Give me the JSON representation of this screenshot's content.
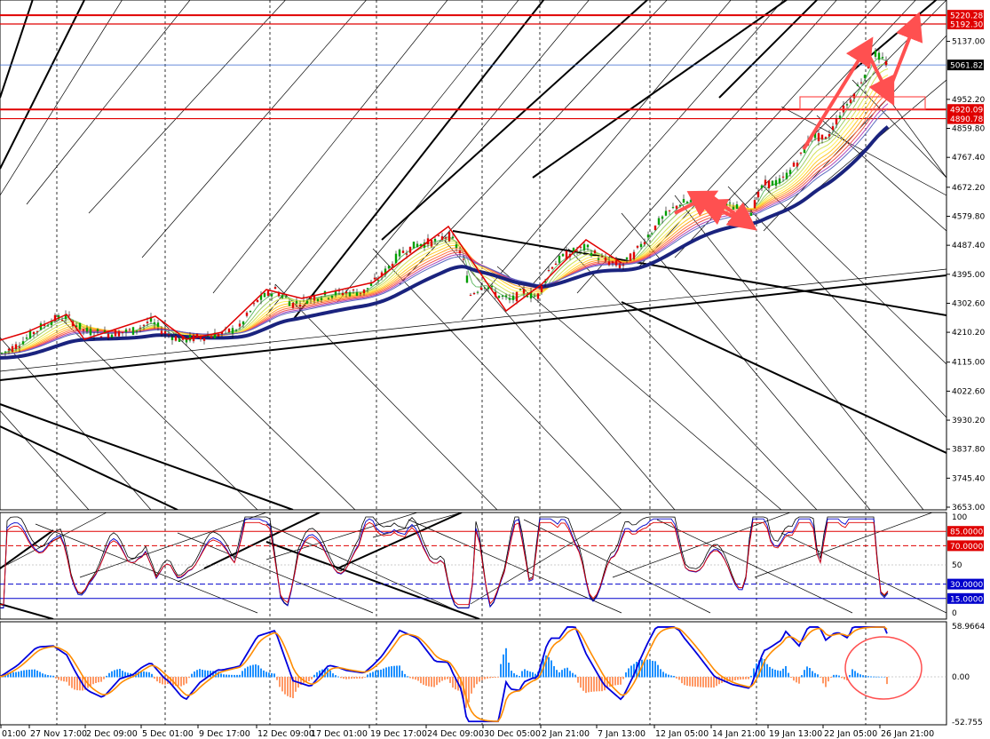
{
  "chart_data": [
    {
      "type": "candlestick",
      "panel": "main",
      "y_axis_ticks": [
        "5137.00",
        "5044.60",
        "4952.20",
        "4859.80",
        "4767.40",
        "4672.20",
        "4579.80",
        "4487.40",
        "4395.00",
        "4302.60",
        "4210.20",
        "4115.00",
        "4022.60",
        "3930.20",
        "3837.80",
        "3745.40",
        "3653.00"
      ],
      "ylim": [
        3653.0,
        5232.0
      ],
      "current_price": "5061.82",
      "horizontal_levels": [
        {
          "label": "5220.28",
          "value": 5220.28,
          "color": "#e00000"
        },
        {
          "label": "5192.30",
          "value": 5192.3,
          "color": "#e00000"
        },
        {
          "label": "4920.09",
          "value": 4920.09,
          "color": "#e00000"
        },
        {
          "label": "4890.78",
          "value": 4890.78,
          "color": "#e00000"
        }
      ],
      "price_path": [
        [
          0,
          4140
        ],
        [
          20,
          4170
        ],
        [
          45,
          4225
        ],
        [
          60,
          4250
        ],
        [
          75,
          4260
        ],
        [
          95,
          4215
        ],
        [
          120,
          4205
        ],
        [
          150,
          4215
        ],
        [
          170,
          4245
        ],
        [
          185,
          4210
        ],
        [
          205,
          4185
        ],
        [
          225,
          4195
        ],
        [
          250,
          4205
        ],
        [
          270,
          4225
        ],
        [
          290,
          4310
        ],
        [
          310,
          4345
        ],
        [
          330,
          4300
        ],
        [
          350,
          4320
        ],
        [
          380,
          4335
        ],
        [
          410,
          4340
        ],
        [
          430,
          4390
        ],
        [
          450,
          4460
        ],
        [
          470,
          4490
        ],
        [
          490,
          4500
        ],
        [
          505,
          4520
        ],
        [
          520,
          4460
        ],
        [
          530,
          4330
        ],
        [
          545,
          4365
        ],
        [
          560,
          4330
        ],
        [
          575,
          4310
        ],
        [
          590,
          4340
        ],
        [
          605,
          4320
        ],
        [
          620,
          4420
        ],
        [
          640,
          4460
        ],
        [
          660,
          4480
        ],
        [
          680,
          4440
        ],
        [
          700,
          4420
        ],
        [
          715,
          4460
        ],
        [
          730,
          4520
        ],
        [
          745,
          4570
        ],
        [
          765,
          4620
        ],
        [
          785,
          4630
        ],
        [
          805,
          4620
        ],
        [
          825,
          4610
        ],
        [
          845,
          4590
        ],
        [
          860,
          4680
        ],
        [
          880,
          4690
        ],
        [
          900,
          4760
        ],
        [
          915,
          4840
        ],
        [
          930,
          4820
        ],
        [
          945,
          4900
        ],
        [
          960,
          4960
        ],
        [
          975,
          5040
        ],
        [
          985,
          5100
        ],
        [
          995,
          5075
        ],
        [
          1003,
          5061
        ]
      ]
    },
    {
      "type": "line",
      "panel": "stochastic",
      "y_axis_ticks": [
        "100",
        "50",
        "0"
      ],
      "ylim": [
        0,
        100
      ],
      "levels": [
        {
          "label": "85.0000",
          "value": 85,
          "color": "#e00000"
        },
        {
          "label": "70.0000",
          "value": 70,
          "color": "#e00000"
        },
        {
          "label": "30.0000",
          "value": 30,
          "color": "#0000cc"
        },
        {
          "label": "15.0000",
          "value": 15,
          "color": "#0000cc"
        }
      ]
    },
    {
      "type": "bar",
      "panel": "macd",
      "y_axis_ticks": [
        "58.9664",
        "0.00",
        "-52.755"
      ],
      "ylim": [
        -52.755,
        58.9664
      ]
    }
  ],
  "time_axis": [
    "01:00",
    "27 Nov 17:00",
    "2 Dec 09:00",
    "5 Dec 01:00",
    "9 Dec 17:00",
    "12 Dec 09:00",
    "17 Dec 01:00",
    "19 Dec 17:00",
    "24 Dec 09:00",
    "30 Dec 05:00",
    "2 Jan 21:00",
    "7 Jan 13:00",
    "12 Jan 05:00",
    "14 Jan 21:00",
    "19 Jan 13:00",
    "22 Jan 05:00",
    "26 Jan 21:00"
  ],
  "colors": {
    "up": "#00a000",
    "down": "#e00000",
    "ma_thick": "#1a237e",
    "level_red": "#e00000",
    "current_line": "#3366cc",
    "arrow": "#ff5050",
    "macd_line": "#0000dd",
    "signal_line": "#ff8c00",
    "hist_pos": "#1e90ff",
    "hist_neg": "#ff9966"
  }
}
